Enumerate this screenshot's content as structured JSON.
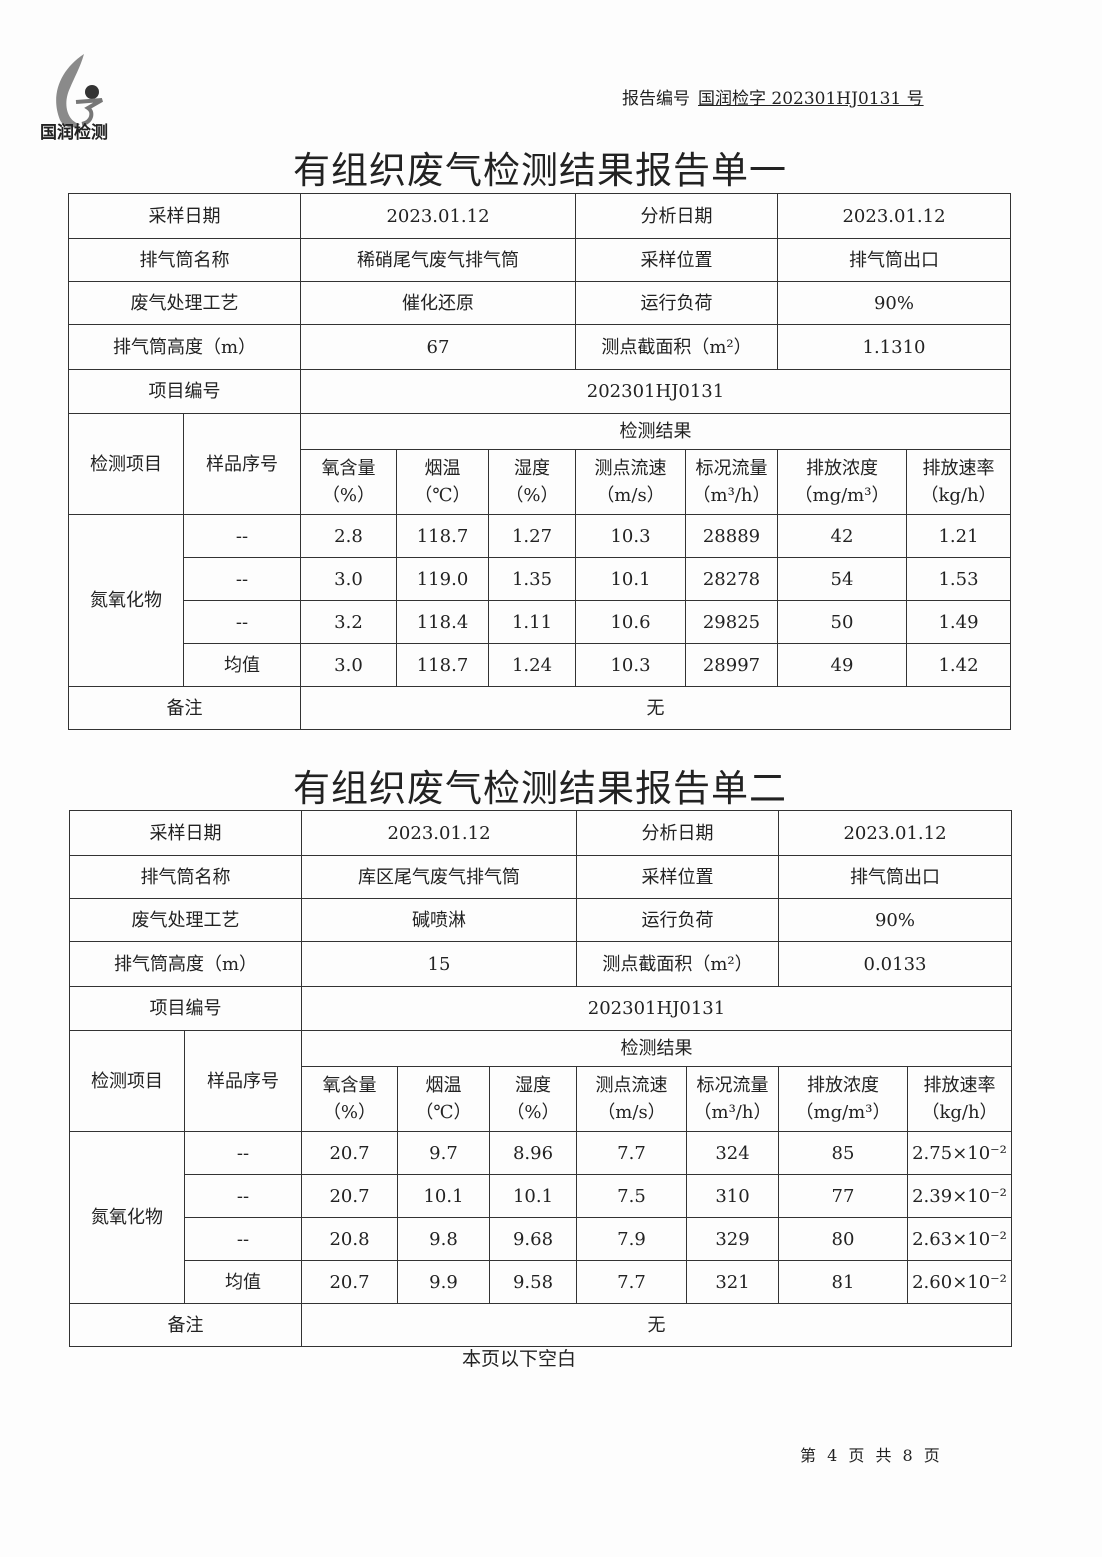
{
  "header": {
    "logo_text": "国润检测",
    "report_no_label": "报告编号",
    "report_no": "国润检字 202301HJ0131 号"
  },
  "reports": [
    {
      "title": "有组织废气检测结果报告单一",
      "info": [
        [
          "采样日期",
          "2023.01.12",
          "分析日期",
          "2023.01.12"
        ],
        [
          "排气筒名称",
          "稀硝尾气废气排气筒",
          "采样位置",
          "排气筒出口"
        ],
        [
          "废气处理工艺",
          "催化还原",
          "运行负荷",
          "90%"
        ],
        [
          "排气筒高度（m）",
          "67",
          "测点截面积（m²）",
          "1.1310"
        ]
      ],
      "project_label": "项目编号",
      "project_no": "202301HJ0131",
      "item_label": "检测项目",
      "seq_label": "样品序号",
      "result_label": "检测结果",
      "columns": [
        "氧含量\n（%）",
        "烟温\n（℃）",
        "湿度\n（%）",
        "测点流速\n（m/s）",
        "标况流量\n（m³/h）",
        "排放浓度\n（mg/m³）",
        "排放速率\n（kg/h）"
      ],
      "item": "氮氧化物",
      "rows": [
        {
          "seq": "--",
          "values": [
            "2.8",
            "118.7",
            "1.27",
            "10.3",
            "28889",
            "42",
            "1.21"
          ]
        },
        {
          "seq": "--",
          "values": [
            "3.0",
            "119.0",
            "1.35",
            "10.1",
            "28278",
            "54",
            "1.53"
          ]
        },
        {
          "seq": "--",
          "values": [
            "3.2",
            "118.4",
            "1.11",
            "10.6",
            "29825",
            "50",
            "1.49"
          ]
        },
        {
          "seq": "均值",
          "values": [
            "3.0",
            "118.7",
            "1.24",
            "10.3",
            "28997",
            "49",
            "1.42"
          ]
        }
      ],
      "remark_label": "备注",
      "remark": "无"
    },
    {
      "title": "有组织废气检测结果报告单二",
      "info": [
        [
          "采样日期",
          "2023.01.12",
          "分析日期",
          "2023.01.12"
        ],
        [
          "排气筒名称",
          "库区尾气废气排气筒",
          "采样位置",
          "排气筒出口"
        ],
        [
          "废气处理工艺",
          "碱喷淋",
          "运行负荷",
          "90%"
        ],
        [
          "排气筒高度（m）",
          "15",
          "测点截面积（m²）",
          "0.0133"
        ]
      ],
      "project_label": "项目编号",
      "project_no": "202301HJ0131",
      "item_label": "检测项目",
      "seq_label": "样品序号",
      "result_label": "检测结果",
      "columns": [
        "氧含量\n（%）",
        "烟温\n（℃）",
        "湿度\n（%）",
        "测点流速\n（m/s）",
        "标况流量\n（m³/h）",
        "排放浓度\n（mg/m³）",
        "排放速率\n（kg/h）"
      ],
      "item": "氮氧化物",
      "rows": [
        {
          "seq": "--",
          "values": [
            "20.7",
            "9.7",
            "8.96",
            "7.7",
            "324",
            "85",
            "2.75×10⁻²"
          ]
        },
        {
          "seq": "--",
          "values": [
            "20.7",
            "10.1",
            "10.1",
            "7.5",
            "310",
            "77",
            "2.39×10⁻²"
          ]
        },
        {
          "seq": "--",
          "values": [
            "20.8",
            "9.8",
            "9.68",
            "7.9",
            "329",
            "80",
            "2.63×10⁻²"
          ]
        },
        {
          "seq": "均值",
          "values": [
            "20.7",
            "9.9",
            "9.58",
            "7.7",
            "321",
            "81",
            "2.60×10⁻²"
          ]
        }
      ],
      "remark_label": "备注",
      "remark": "无"
    }
  ],
  "footer": {
    "blank_note": "本页以下空白",
    "page_number": "第 4 页 共 8 页"
  }
}
